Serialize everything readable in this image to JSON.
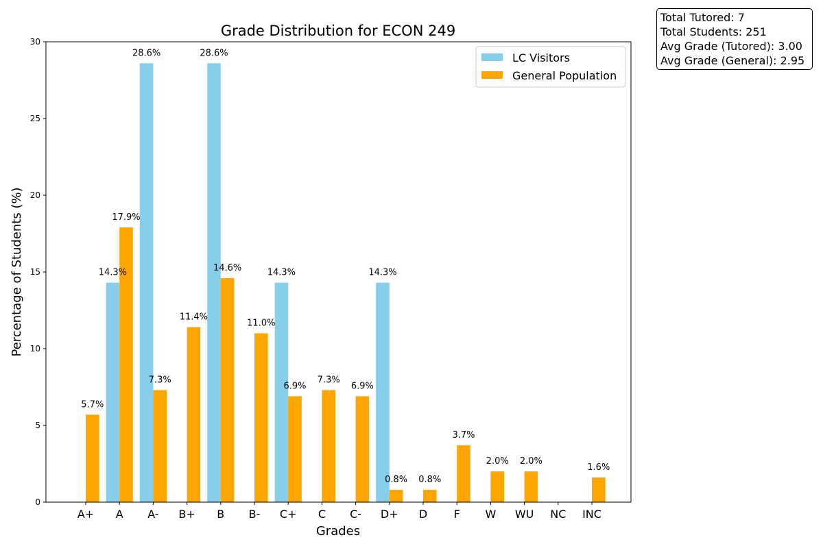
{
  "chart_data": {
    "type": "bar",
    "title": "Grade Distribution for ECON  249",
    "xlabel": "Grades",
    "ylabel": "Percentage of Students (%)",
    "ylim": [
      0,
      30
    ],
    "yticks": [
      "0",
      "5",
      "10",
      "15",
      "20",
      "25",
      "30"
    ],
    "categories": [
      "A+",
      "A",
      "A-",
      "B+",
      "B",
      "B-",
      "C+",
      "C",
      "C-",
      "D+",
      "D",
      "F",
      "W",
      "WU",
      "NC",
      "INC"
    ],
    "legend_position": "top-right",
    "series": [
      {
        "name": "LC Visitors",
        "color": "#87ceeb",
        "values": [
          0,
          14.3,
          28.6,
          0,
          28.6,
          0,
          14.3,
          0,
          0,
          14.3,
          0,
          0,
          0,
          0,
          0,
          0
        ],
        "labels": [
          "",
          "14.3%",
          "28.6%",
          "",
          "28.6%",
          "",
          "14.3%",
          "",
          "",
          "14.3%",
          "",
          "",
          "",
          "",
          "",
          ""
        ]
      },
      {
        "name": "General Population",
        "color": "#ffa500",
        "values": [
          5.7,
          17.9,
          7.3,
          11.4,
          14.6,
          11.0,
          6.9,
          7.3,
          6.9,
          0.8,
          0.8,
          3.7,
          2.0,
          2.0,
          0,
          1.6
        ],
        "labels": [
          "5.7%",
          "17.9%",
          "7.3%",
          "11.4%",
          "14.6%",
          "11.0%",
          "6.9%",
          "7.3%",
          "6.9%",
          "0.8%",
          "0.8%",
          "3.7%",
          "2.0%",
          "2.0%",
          "",
          "1.6%"
        ]
      }
    ]
  },
  "stats": {
    "total_tutored": "Total Tutored: 7",
    "total_students": "Total Students: 251",
    "avg_tutored": "Avg Grade (Tutored): 3.00",
    "avg_general": "Avg Grade (General): 2.95"
  }
}
